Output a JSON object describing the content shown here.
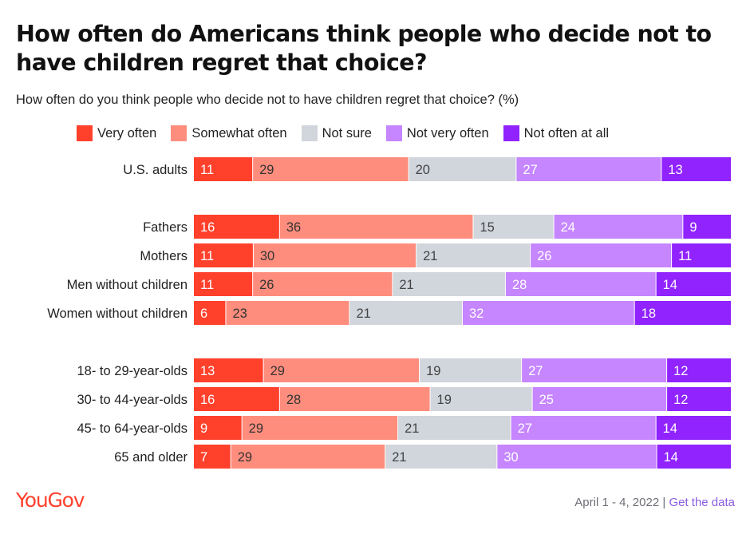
{
  "title": "How often do Americans think people who decide not to have children regret that choice?",
  "subtitle": "How often do you think people who decide not to have children regret that choice? (%)",
  "footer": {
    "date": "April 1 - 4, 2022",
    "separator": "|",
    "link": "Get the data"
  },
  "logo": "YouGov",
  "colors": {
    "very_often": "#ff412c",
    "somewhat_often": "#ff8d7d",
    "not_sure": "#d1d5dc",
    "not_very_often": "#c686ff",
    "not_often_at_all": "#9023fe"
  },
  "chart_data": {
    "type": "bar",
    "orientation": "horizontal",
    "stacked": true,
    "title": "How often do Americans think people who decide not to have children regret that choice?",
    "subtitle": "How often do you think people who decide not to have children regret that choice? (%)",
    "legend_position": "top",
    "series": [
      {
        "name": "Very often",
        "color": "#ff412c",
        "label_color": "#ffffff"
      },
      {
        "name": "Somewhat often",
        "color": "#ff8d7d",
        "label_color": "#333333"
      },
      {
        "name": "Not sure",
        "color": "#d1d5dc",
        "label_color": "#444444"
      },
      {
        "name": "Not very often",
        "color": "#c686ff",
        "label_color": "#ffffff"
      },
      {
        "name": "Not often at all",
        "color": "#9023fe",
        "label_color": "#ffffff"
      }
    ],
    "groups": [
      {
        "rows": [
          {
            "label": "U.S. adults",
            "values": [
              11,
              29,
              20,
              27,
              13
            ]
          }
        ]
      },
      {
        "rows": [
          {
            "label": "Fathers",
            "values": [
              16,
              36,
              15,
              24,
              9
            ]
          },
          {
            "label": "Mothers",
            "values": [
              11,
              30,
              21,
              26,
              11
            ]
          },
          {
            "label": "Men without children",
            "values": [
              11,
              26,
              21,
              28,
              14
            ]
          },
          {
            "label": "Women without children",
            "values": [
              6,
              23,
              21,
              32,
              18
            ]
          }
        ]
      },
      {
        "rows": [
          {
            "label": "18- to 29-year-olds",
            "values": [
              13,
              29,
              19,
              27,
              12
            ]
          },
          {
            "label": "30- to 44-year-olds",
            "values": [
              16,
              28,
              19,
              25,
              12
            ]
          },
          {
            "label": "45- to 64-year-olds",
            "values": [
              9,
              29,
              21,
              27,
              14
            ]
          },
          {
            "label": "65 and older",
            "values": [
              7,
              29,
              21,
              30,
              14
            ]
          }
        ]
      }
    ]
  }
}
